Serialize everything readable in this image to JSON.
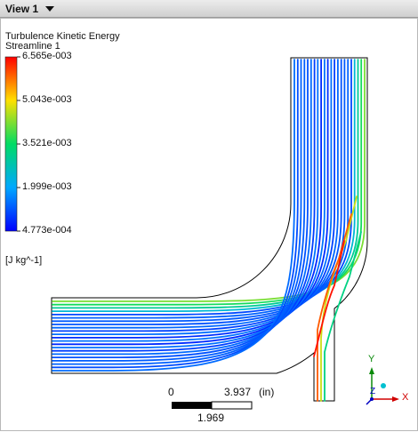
{
  "view": {
    "title": "View 1"
  },
  "legend": {
    "title": "Turbulence Kinetic Energy",
    "subtitle": "Streamline 1",
    "ticks": [
      "6.565e-003",
      "5.043e-003",
      "3.521e-003",
      "1.999e-003",
      "4.773e-004"
    ],
    "units": "[J kg^-1]"
  },
  "scale_bar": {
    "left_label": "0",
    "right_label": "3.937",
    "units": "(in)",
    "mid_label": "1.969"
  },
  "axes": {
    "x": "X",
    "y": "Y",
    "z": "Z"
  },
  "colors": {
    "low": "#0000ff",
    "mid": "#00dc64",
    "high": "#ff0000"
  }
}
